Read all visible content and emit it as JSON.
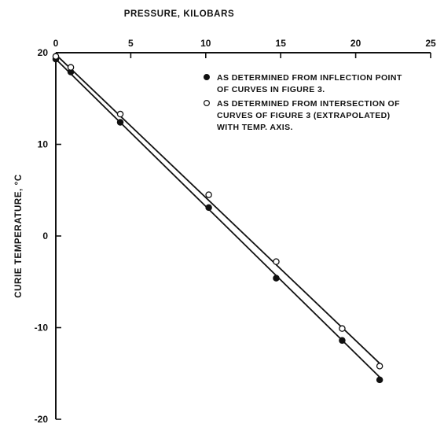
{
  "chart_data": {
    "type": "scatter",
    "title": "",
    "xlabel": "PRESSURE, KILOBARS",
    "ylabel": "CURIE TEMPERATURE, °C",
    "xlim": [
      0,
      25
    ],
    "ylim": [
      -20,
      20
    ],
    "x_ticks": [
      "0",
      "5",
      "10",
      "15",
      "20",
      "25"
    ],
    "y_ticks": [
      "20",
      "10",
      "0",
      "-10",
      "-20"
    ],
    "x_axis_position": "top",
    "grid": false,
    "series": [
      {
        "name": "AS DETERMINED FROM INFLECTION POINT OF CURVES IN FIGURE 3.",
        "marker": "filled-circle",
        "points": [
          {
            "x": 0,
            "y": 19.3
          },
          {
            "x": 1,
            "y": 17.9
          },
          {
            "x": 4.3,
            "y": 12.4
          },
          {
            "x": 10.2,
            "y": 3.1
          },
          {
            "x": 14.7,
            "y": -4.6
          },
          {
            "x": 19.1,
            "y": -11.4
          },
          {
            "x": 21.6,
            "y": -15.7
          }
        ],
        "fit_line": {
          "x": [
            0,
            21.6
          ],
          "y": [
            19.3,
            -15.4
          ]
        }
      },
      {
        "name": "AS DETERMINED FROM INTERSECTION OF CURVES OF FIGURE 3 (EXTRAPOLATED) WITH TEMP. AXIS.",
        "marker": "open-circle",
        "points": [
          {
            "x": 0,
            "y": 19.6
          },
          {
            "x": 1,
            "y": 18.4
          },
          {
            "x": 4.3,
            "y": 13.3
          },
          {
            "x": 10.2,
            "y": 4.5
          },
          {
            "x": 14.7,
            "y": -2.8
          },
          {
            "x": 19.1,
            "y": -10.1
          },
          {
            "x": 21.6,
            "y": -14.2
          }
        ],
        "fit_line": {
          "x": [
            0,
            21.6
          ],
          "y": [
            19.8,
            -13.9
          ]
        }
      }
    ],
    "legend": {
      "position": "top-right",
      "entries": [
        {
          "marker": "filled-circle",
          "lines": [
            "AS DETERMINED FROM INFLECTION POINT",
            "OF CURVES IN FIGURE 3."
          ]
        },
        {
          "marker": "open-circle",
          "lines": [
            "AS DETERMINED FROM INTERSECTION OF",
            "CURVES OF FIGURE 3 (EXTRAPOLATED)",
            "WITH TEMP. AXIS."
          ]
        }
      ]
    }
  }
}
